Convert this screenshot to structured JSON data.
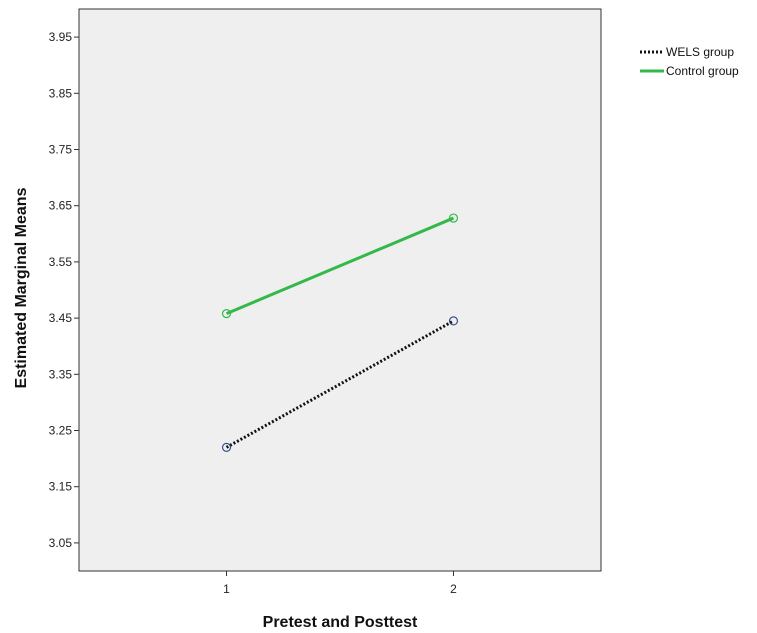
{
  "chart_data": {
    "type": "line",
    "x": [
      1,
      2
    ],
    "xlabel": "Pretest and Posttest",
    "ylabel": "Estimated Marginal Means",
    "ylim": [
      3.0,
      4.0
    ],
    "xlim": [
      0.35,
      2.65
    ],
    "yticks": [
      "3.05",
      "3.15",
      "3.25",
      "3.35",
      "3.45",
      "3.55",
      "3.65",
      "3.75",
      "3.85",
      "3.95"
    ],
    "xticks": [
      "1",
      "2"
    ],
    "grid": false,
    "legend_position": "top-right outside",
    "series": [
      {
        "name": "WELS group",
        "values": [
          3.22,
          3.445
        ],
        "line_style": "dotted",
        "color": "#111111",
        "marker_color": "#3a4f8f"
      },
      {
        "name": "Control group",
        "values": [
          3.458,
          3.628
        ],
        "line_style": "solid",
        "color": "#35b84a",
        "marker_color": "#35b84a"
      }
    ],
    "plot_background": "#efefef"
  }
}
